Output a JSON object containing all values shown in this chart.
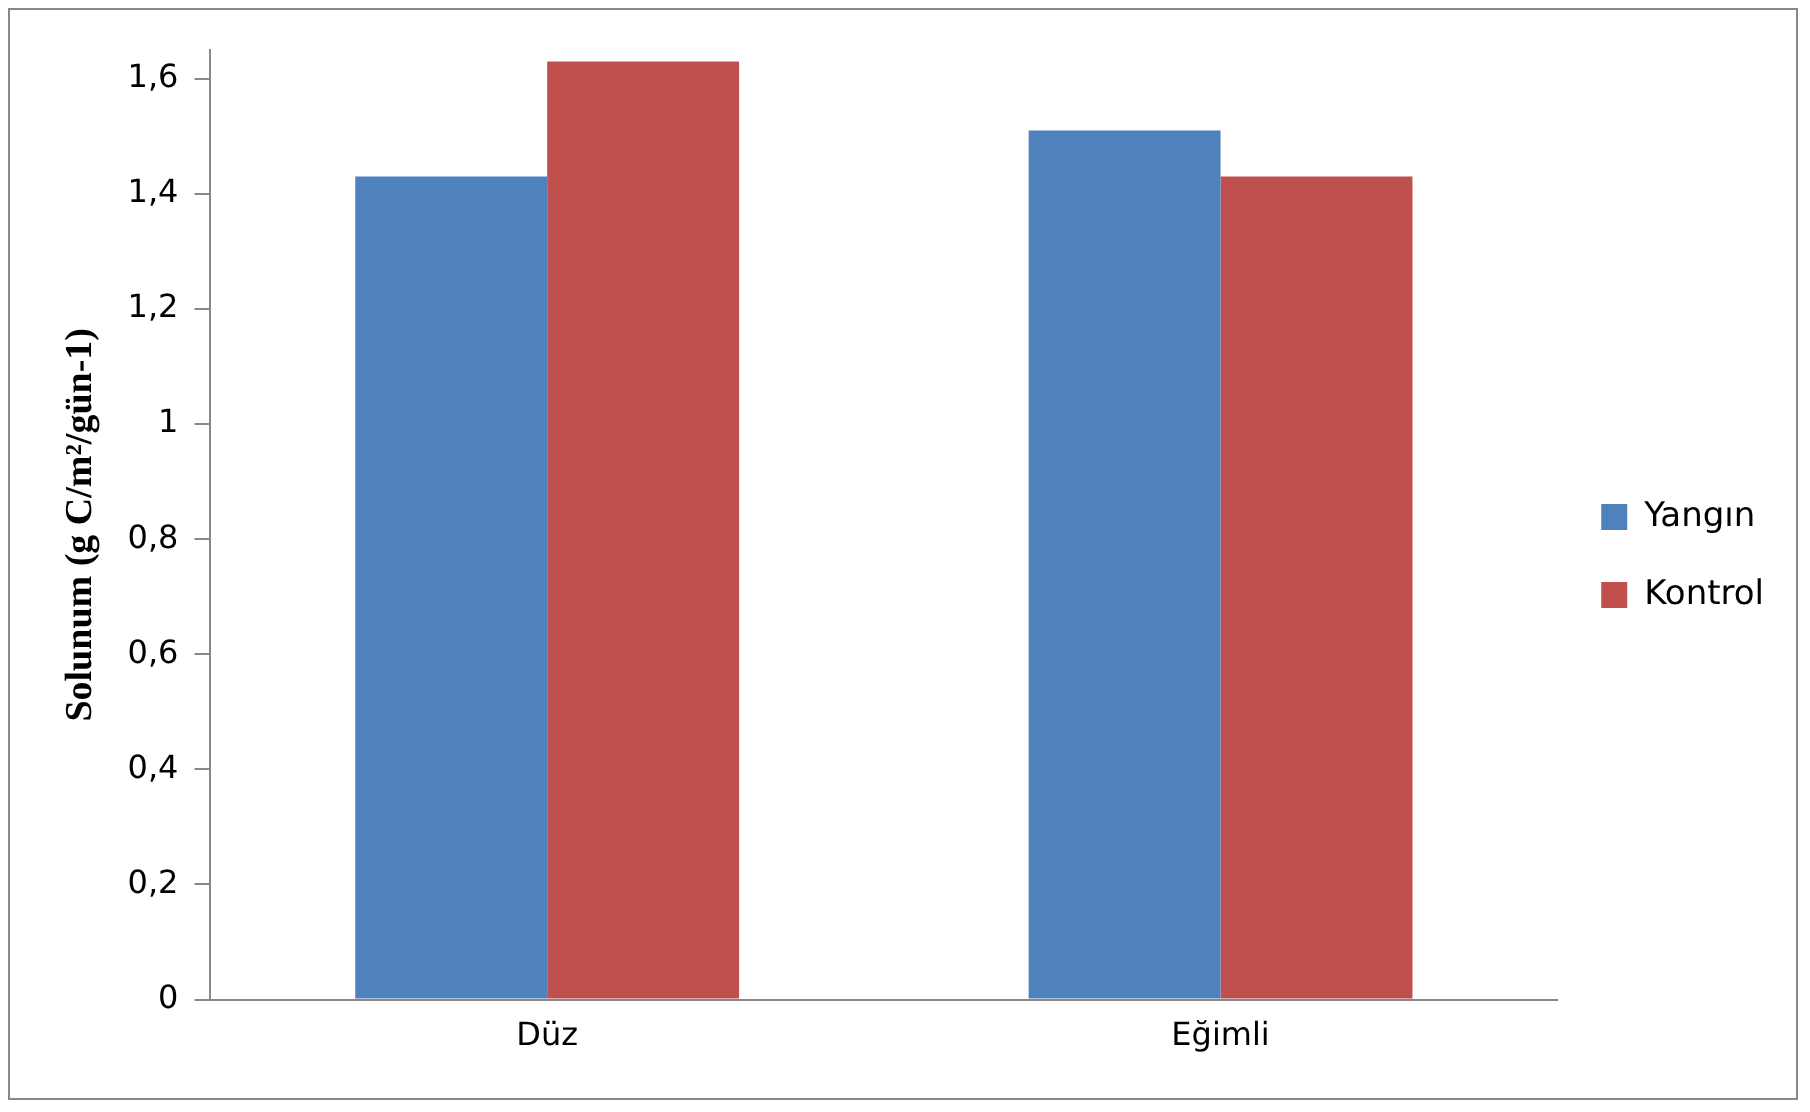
{
  "chart_data": {
    "type": "bar",
    "ylabel": "Solunum (g C/m²/gün-1)",
    "categories": [
      "Düz",
      "Eğimli"
    ],
    "series": [
      {
        "name": "Yangın",
        "color": "#4f81bd",
        "values": [
          1.43,
          1.51
        ]
      },
      {
        "name": "Kontrol",
        "color": "#c0504d",
        "values": [
          1.63,
          1.43
        ]
      }
    ],
    "ylim": [
      0,
      1.65
    ],
    "yticks": [
      0,
      {
        "value": 0.2,
        "label": "0,2"
      },
      {
        "value": 0.4,
        "label": "0,4"
      },
      {
        "value": 0.6,
        "label": "0,6"
      },
      {
        "value": 0.8,
        "label": "0,8"
      },
      1,
      {
        "value": 1.2,
        "label": "1,2"
      },
      {
        "value": 1.4,
        "label": "1,4"
      },
      {
        "value": 1.6,
        "label": "1,6"
      }
    ],
    "grid": false,
    "legend": "right"
  }
}
